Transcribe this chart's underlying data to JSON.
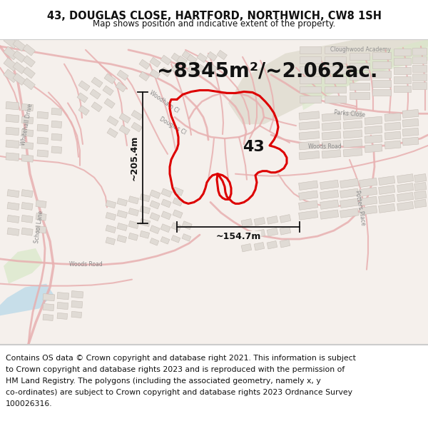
{
  "title_line1": "43, DOUGLAS CLOSE, HARTFORD, NORTHWICH, CW8 1SH",
  "title_line2": "Map shows position and indicative extent of the property.",
  "area_text": "~8345m²/~2.062ac.",
  "dim_vertical": "~205.4m",
  "dim_horizontal": "~154.7m",
  "label_43": "43",
  "footer_line1": "Contains OS data © Crown copyright and database right 2021. This information is subject",
  "footer_line2": "to Crown copyright and database rights 2023 and is reproduced with the permission of",
  "footer_line3": "HM Land Registry. The polygons (including the associated geometry, namely x, y",
  "footer_line4": "co-ordinates) are subject to Crown copyright and database rights 2023 Ordnance Survey",
  "footer_line5": "100026316.",
  "map_bg": "#f5f0ec",
  "street_bg": "#f0ebe5",
  "title_bg": "#ffffff",
  "footer_bg": "#ffffff",
  "building_fill": "#e8e2dc",
  "building_edge": "#c8c0b8",
  "road_pink": "#e8b0b0",
  "road_pink_light": "#f0c8c8",
  "property_color": "#dd0000",
  "dim_color": "#111111",
  "text_color": "#111111",
  "label_color": "#888888",
  "green_fill": "#d8e8c8",
  "green_fill2": "#e0ddd0",
  "water_fill": "#b8d8e8",
  "title_fontsize": 10.5,
  "subtitle_fontsize": 8.5,
  "area_fontsize": 20,
  "dim_fontsize": 9,
  "label_fontsize": 16,
  "footer_fontsize": 7.8,
  "map_label_fontsize": 5.5
}
